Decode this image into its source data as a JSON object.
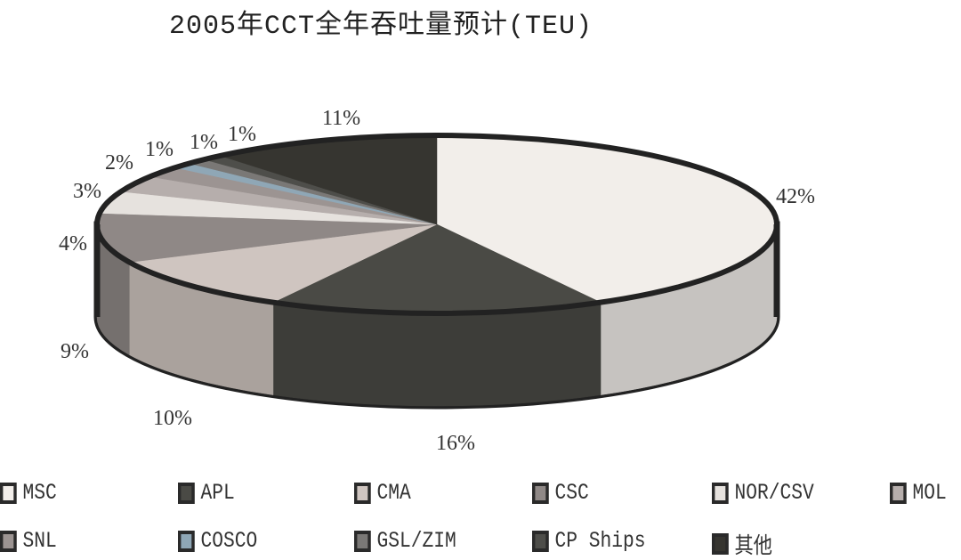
{
  "chart_data": {
    "type": "pie",
    "title": "2005年CCT全年吞吐量预计(TEU)",
    "style": "3d",
    "legend_placement": "bottom",
    "slices": [
      {
        "name": "MSC",
        "value": 42,
        "label": "42%",
        "color": "#f2eeea"
      },
      {
        "name": "APL",
        "value": 16,
        "label": "16%",
        "color": "#4a4a45"
      },
      {
        "name": "CMA",
        "value": 10,
        "label": "10%",
        "color": "#cfc5c0"
      },
      {
        "name": "CSC",
        "value": 9,
        "label": "9%",
        "color": "#8f8886"
      },
      {
        "name": "NOR/CSV",
        "value": 4,
        "label": "4%",
        "color": "#e6e2de"
      },
      {
        "name": "MOL",
        "value": 3,
        "label": "3%",
        "color": "#b6aeac"
      },
      {
        "name": "SNL",
        "value": 2,
        "label": "2%",
        "color": "#9c9492"
      },
      {
        "name": "COSCO",
        "value": 1,
        "label": "1%",
        "color": "#8fa7b6"
      },
      {
        "name": "GSL/ZIM",
        "value": 1,
        "label": "1%",
        "color": "#7a7876"
      },
      {
        "name": "CP Ships",
        "value": 1,
        "label": "1%",
        "color": "#4e4e4a"
      },
      {
        "name": "其他",
        "value": 11,
        "label": "11%",
        "color": "#363530"
      }
    ]
  }
}
